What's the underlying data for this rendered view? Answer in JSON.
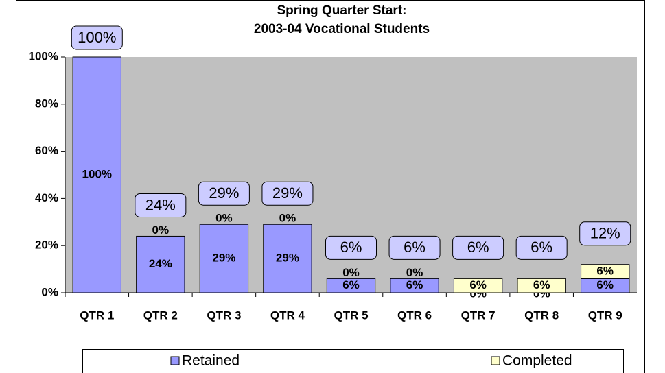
{
  "chart_data": {
    "type": "stacked_bar",
    "title": "Spring Quarter Start:",
    "subtitle": "2003-04 Vocational Students",
    "categories": [
      "QTR 1",
      "QTR 2",
      "QTR 3",
      "QTR 4",
      "QTR 5",
      "QTR 6",
      "QTR 7",
      "QTR 8",
      "QTR 9"
    ],
    "series": [
      {
        "name": "Retained",
        "color": "#9999ff",
        "values": [
          100,
          24,
          29,
          29,
          6,
          6,
          0,
          0,
          6
        ],
        "value_labels": [
          "100%",
          "24%",
          "29%",
          "29%",
          "6%",
          "6%",
          "0%",
          "0%",
          "6%"
        ]
      },
      {
        "name": "Completed",
        "color": "#ffffcc",
        "values": [
          0,
          0,
          0,
          0,
          0,
          0,
          6,
          6,
          6
        ],
        "value_labels": [
          null,
          "0%",
          "0%",
          "0%",
          "0%",
          "0%",
          "6%",
          "6%",
          "6%"
        ]
      }
    ],
    "totals": [
      100,
      24,
      29,
      29,
      6,
      6,
      6,
      6,
      12
    ],
    "total_labels": [
      "100%",
      "24%",
      "29%",
      "29%",
      "6%",
      "6%",
      "6%",
      "6%",
      "12%"
    ],
    "ylim": [
      0,
      100
    ],
    "yticks": [
      {
        "value": 0,
        "label": "0%"
      },
      {
        "value": 20,
        "label": "20%"
      },
      {
        "value": 40,
        "label": "40%"
      },
      {
        "value": 60,
        "label": "60%"
      },
      {
        "value": 80,
        "label": "80%"
      },
      {
        "value": 100,
        "label": "100%"
      }
    ],
    "plot_background": "#c0c0c0",
    "legend": "bottom"
  }
}
